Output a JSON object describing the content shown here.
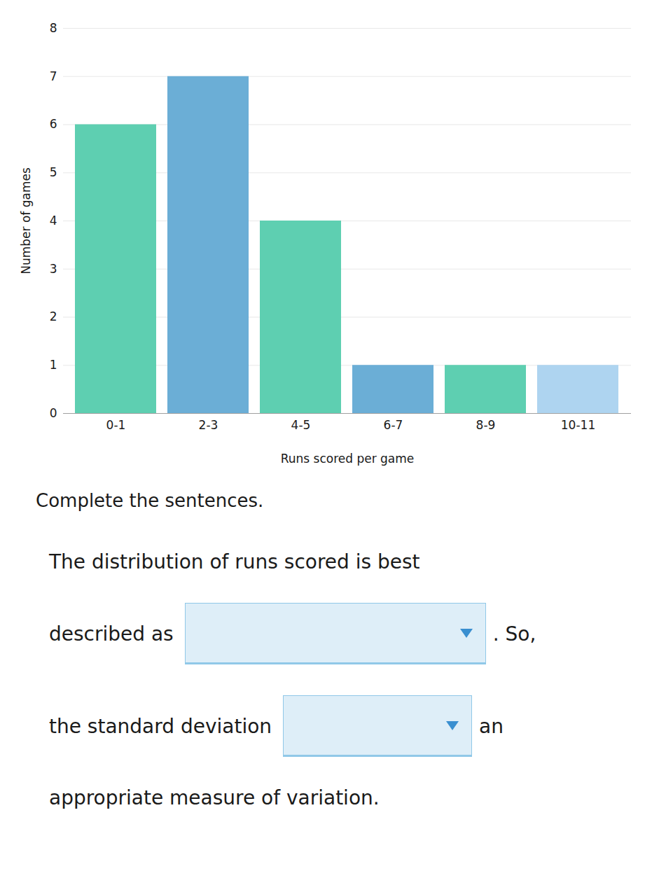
{
  "chart_data": {
    "type": "bar",
    "categories": [
      "0-1",
      "2-3",
      "4-5",
      "6-7",
      "8-9",
      "10-11"
    ],
    "values": [
      6,
      7,
      4,
      1,
      1,
      1
    ],
    "colors": [
      "#5ecfb1",
      "#6baed6",
      "#5ecfb1",
      "#6baed6",
      "#5ecfb1",
      "#aed4f0"
    ],
    "x_label": "Runs scored per game",
    "y_label": "Number of games",
    "ylim": [
      0,
      8
    ],
    "yticks": [
      0,
      1,
      2,
      3,
      4,
      5,
      6,
      7,
      8
    ],
    "grid": true,
    "annotations": [
      "Complete the sentences.",
      "The distribution of runs scored is best",
      "described as",
      ". So,",
      "the standard deviation",
      "an",
      "appropriate measure of variation."
    ]
  }
}
